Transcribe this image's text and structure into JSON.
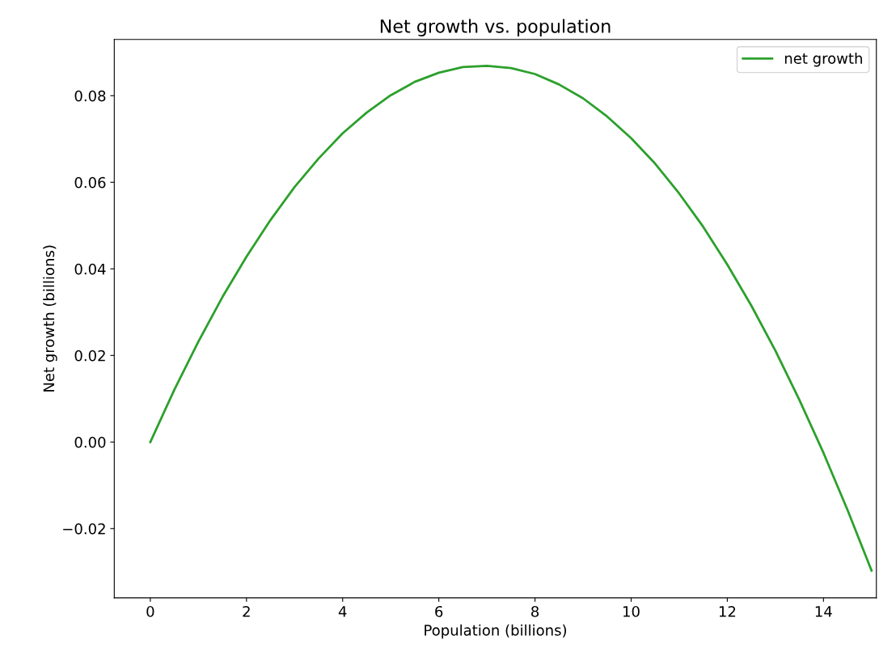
{
  "chart_data": {
    "type": "line",
    "title": "Net growth vs. population",
    "xlabel": "Population (billions)",
    "ylabel": "Net growth (billions)",
    "x": [
      0,
      0.5,
      1,
      1.5,
      2,
      2.5,
      3,
      3.5,
      4,
      4.5,
      5,
      5.5,
      6,
      6.5,
      7,
      7.5,
      8,
      8.5,
      9,
      9.5,
      10,
      10.5,
      11,
      11.5,
      12,
      12.5,
      13,
      13.5,
      14,
      14.5,
      15
    ],
    "series": [
      {
        "name": "net growth",
        "color": "#2ca02c",
        "values": [
          0,
          0.0121,
          0.0232,
          0.0335,
          0.0428,
          0.0513,
          0.0589,
          0.0655,
          0.0713,
          0.0761,
          0.0801,
          0.0832,
          0.0853,
          0.0866,
          0.0869,
          0.0864,
          0.085,
          0.0826,
          0.0794,
          0.0752,
          0.0702,
          0.0643,
          0.0574,
          0.0497,
          0.041,
          0.0315,
          0.0211,
          0.0097,
          -0.0025,
          -0.0157,
          -0.0297
        ]
      }
    ],
    "xlim": [
      -0.75,
      15.1
    ],
    "xticks": [
      0,
      2,
      4,
      6,
      8,
      10,
      12,
      14
    ],
    "ylim": [
      -0.036,
      0.093
    ],
    "yticks": [
      {
        "value": -0.02,
        "label": "−0.02"
      },
      {
        "value": 0,
        "label": "0.00"
      },
      {
        "value": 0.02,
        "label": "0.02"
      },
      {
        "value": 0.04,
        "label": "0.04"
      },
      {
        "value": 0.06,
        "label": "0.06"
      },
      {
        "value": 0.08,
        "label": "0.08"
      }
    ],
    "legend": "top right"
  }
}
